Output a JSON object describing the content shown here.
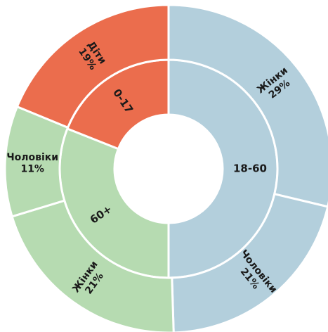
{
  "chart_data": {
    "type": "sunburst",
    "title": "",
    "colors": {
      "0-17": "#eb6d4d",
      "18-60": "#b3cfdc",
      "60+": "#b6dbb1",
      "divider": "#ffffff",
      "text": "#1a1a1a"
    },
    "inner": [
      {
        "label": "18-60",
        "value": 50
      },
      {
        "label": "60+",
        "value": 31
      },
      {
        "label": "0-17",
        "value": 19
      }
    ],
    "outer": [
      {
        "group": "18-60",
        "name": "Жінки",
        "pct_label": "29%",
        "value": 29
      },
      {
        "group": "18-60",
        "name": "Чоловіки",
        "pct_label": "21%",
        "value": 21
      },
      {
        "group": "60+",
        "name": "Жінки",
        "pct_label": "21%",
        "value": 21
      },
      {
        "group": "60+",
        "name": "Чоловіки",
        "pct_label": "11%",
        "value": 11
      },
      {
        "group": "0-17",
        "name": "Діти",
        "pct_label": "19%",
        "value": 19
      }
    ]
  }
}
